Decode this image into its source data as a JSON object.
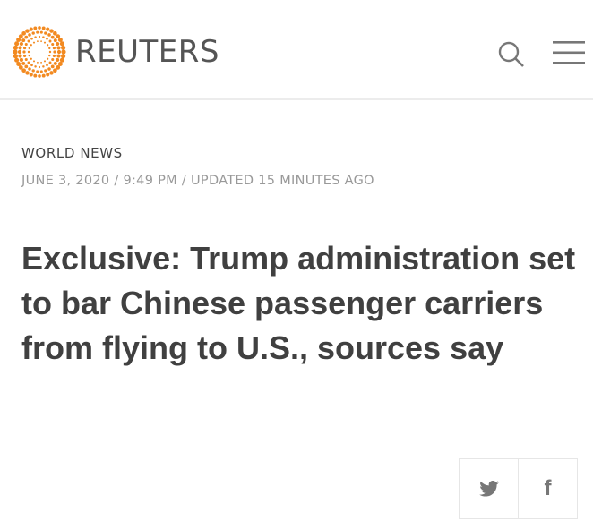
{
  "header": {
    "brand": "REUTERS",
    "brand_color": "#f28a21",
    "icons": [
      "search-icon",
      "hamburger-menu-icon"
    ]
  },
  "article": {
    "category": "WORLD NEWS",
    "dateline": "JUNE 3, 2020 / 9:49 PM / UPDATED 15 MINUTES AGO",
    "headline": "Exclusive: Trump administration set to bar Chinese passenger carriers from flying to U.S., sources say"
  },
  "share": {
    "twitter_icon": "twitter-icon",
    "facebook_label": "f"
  }
}
